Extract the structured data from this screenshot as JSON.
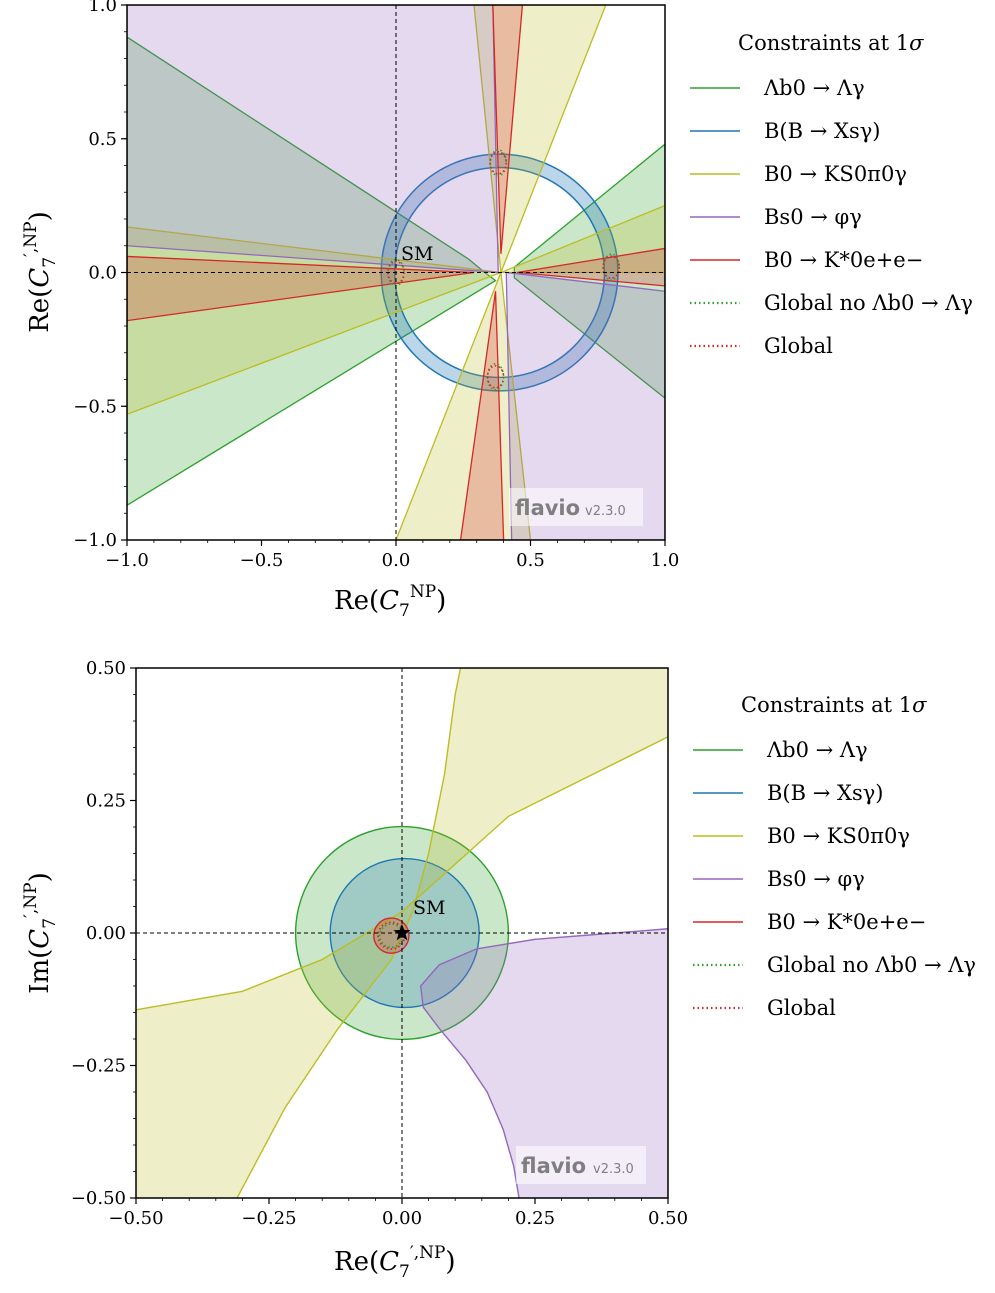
{
  "chart_data": [
    {
      "type": "area",
      "xlabel": "Re(C7 NP)",
      "ylabel": "Re(C'7 NP)",
      "xlim": [
        -1.0,
        1.0
      ],
      "ylim": [
        -1.0,
        1.0
      ],
      "xticks": [
        -1.0,
        -0.5,
        0.0,
        0.5,
        1.0
      ],
      "xtick_labels": [
        "−1.0",
        "−0.5",
        "0.0",
        "0.5",
        "1.0"
      ],
      "yticks": [
        -1.0,
        -0.5,
        0.0,
        0.5,
        1.0
      ],
      "ytick_labels": [
        "−1.0",
        "−0.5",
        "0.0",
        "0.5",
        "1.0"
      ],
      "grid": false,
      "legend_title": "Constraints at 1σ",
      "legend_position": "outside-right",
      "sm_label": "SM",
      "sm_point": [
        0.0,
        0.0
      ],
      "watermark": "flavio",
      "watermark_version": "v2.3.0",
      "regions": [
        {
          "name": "Λb0 → Λγ",
          "color": "#2ca02c",
          "polygons": [
            [
              [
                -1.0,
                0.88
              ],
              [
                0.27,
                0.05
              ],
              [
                0.33,
                0.0
              ],
              [
                0.37,
                -0.03
              ],
              [
                0.37,
                -0.03
              ],
              [
                -1.0,
                -0.87
              ]
            ],
            [
              [
                1.0,
                0.48
              ],
              [
                0.44,
                0.02
              ],
              [
                0.44,
                -0.02
              ],
              [
                1.0,
                -0.47
              ]
            ]
          ]
        },
        {
          "name": "B(B → Xsγ)",
          "color": "#1f77b4",
          "ring": {
            "center": [
              0.385,
              0.0
            ],
            "r_inner": 0.39,
            "r_outer": 0.44
          }
        },
        {
          "name": "B0 → KS0π0γ",
          "color": "#bcbd22",
          "polygons": [
            [
              [
                -1.0,
                0.17
              ],
              [
                0.39,
                0.0
              ],
              [
                -1.0,
                -0.53
              ]
            ],
            [
              [
                0.39,
                0.0
              ],
              [
                1.0,
                0.25
              ],
              [
                1.0,
                -0.0
              ]
            ],
            [
              [
                0.39,
                0.0
              ],
              [
                0.29,
                1.0
              ],
              [
                0.78,
                1.0
              ]
            ],
            [
              [
                0.39,
                0.0
              ],
              [
                0.0,
                -1.0
              ],
              [
                0.5,
                -1.0
              ]
            ]
          ]
        },
        {
          "name": "Bs0 → φγ",
          "color": "#9467bd",
          "polygons": [
            [
              [
                -1.0,
                1.0
              ],
              [
                0.36,
                1.0
              ],
              [
                0.38,
                0.0
              ],
              [
                -1.0,
                0.1
              ]
            ],
            [
              [
                0.41,
                0.0
              ],
              [
                0.43,
                -1.0
              ],
              [
                1.0,
                -1.0
              ],
              [
                1.0,
                -0.07
              ]
            ]
          ]
        },
        {
          "name": "B0 → K*0e+e−",
          "color": "#d62728",
          "polygons": [
            [
              [
                -1.0,
                0.06
              ],
              [
                0.29,
                0.0
              ],
              [
                -1.0,
                -0.18
              ]
            ],
            [
              [
                0.45,
                0.0
              ],
              [
                1.0,
                0.09
              ],
              [
                1.0,
                -0.05
              ]
            ],
            [
              [
                0.36,
                1.0
              ],
              [
                0.39,
                0.07
              ],
              [
                0.47,
                1.0
              ]
            ],
            [
              [
                0.24,
                -1.0
              ],
              [
                0.37,
                -0.07
              ],
              [
                0.4,
                -1.0
              ]
            ]
          ]
        }
      ],
      "global_points": [
        [
          0.0,
          0.0
        ],
        [
          0.8,
          0.02
        ],
        [
          0.38,
          0.41
        ],
        [
          0.37,
          -0.39
        ]
      ],
      "legend": [
        {
          "label": "Λb0 → Λγ",
          "color": "#2ca02c",
          "style": "solid"
        },
        {
          "label": "B(B → Xsγ)",
          "color": "#1f77b4",
          "style": "solid"
        },
        {
          "label": "B0 → KS0π0γ",
          "color": "#bcbd22",
          "style": "solid"
        },
        {
          "label": "Bs0 → φγ",
          "color": "#9467bd",
          "style": "solid"
        },
        {
          "label": "B0 → K*0e+e−",
          "color": "#d62728",
          "style": "solid"
        },
        {
          "label": "Global no Λb0 → Λγ",
          "color": "#2ca02c",
          "style": "dotted"
        },
        {
          "label": "Global",
          "color": "#d62728",
          "style": "dotted"
        }
      ]
    },
    {
      "type": "area",
      "xlabel": "Re(C'7 NP)",
      "ylabel": "Im(C'7 NP)",
      "xlim": [
        -0.5,
        0.5
      ],
      "ylim": [
        -0.5,
        0.5
      ],
      "xticks": [
        -0.5,
        -0.25,
        0.0,
        0.25,
        0.5
      ],
      "xtick_labels": [
        "−0.50",
        "−0.25",
        "0.00",
        "0.25",
        "0.50"
      ],
      "yticks": [
        -0.5,
        -0.25,
        0.0,
        0.25,
        0.5
      ],
      "ytick_labels": [
        "−0.50",
        "−0.25",
        "0.00",
        "0.25",
        "0.50"
      ],
      "grid": false,
      "legend_title": "Constraints at 1σ",
      "legend_position": "outside-right",
      "sm_label": "SM",
      "sm_point": [
        0.0,
        0.0
      ],
      "watermark": "flavio",
      "watermark_version": "v2.3.0",
      "regions": [
        {
          "name": "Λb0 → Λγ",
          "color": "#2ca02c",
          "circle": {
            "center": [
              0.0,
              0.0
            ],
            "r": 0.2
          }
        },
        {
          "name": "B(B → Xsγ)",
          "color": "#1f77b4",
          "circle": {
            "center": [
              0.005,
              0.0
            ],
            "r": 0.14
          }
        },
        {
          "name": "B0 → KS0π0γ",
          "color": "#bcbd22",
          "curves": {
            "upper": [
              [
                -0.5,
                -0.145
              ],
              [
                -0.3,
                -0.11
              ],
              [
                -0.15,
                -0.05
              ],
              [
                0.0,
                0.04
              ],
              [
                0.1,
                0.13
              ],
              [
                0.2,
                0.22
              ],
              [
                0.3,
                0.27
              ],
              [
                0.4,
                0.32
              ],
              [
                0.5,
                0.37
              ]
            ],
            "lower": [
              [
                -0.31,
                -0.5
              ],
              [
                -0.22,
                -0.33
              ],
              [
                -0.12,
                -0.18
              ],
              [
                -0.02,
                -0.05
              ],
              [
                0.02,
                0.04
              ],
              [
                0.05,
                0.15
              ],
              [
                0.08,
                0.3
              ],
              [
                0.1,
                0.45
              ],
              [
                0.11,
                0.5
              ]
            ]
          }
        },
        {
          "name": "Bs0 → φγ",
          "color": "#9467bd",
          "curve": [
            [
              0.5,
              0.008
            ],
            [
              0.4,
              0.0
            ],
            [
              0.25,
              -0.012
            ],
            [
              0.14,
              -0.03
            ],
            [
              0.07,
              -0.06
            ],
            [
              0.035,
              -0.1
            ],
            [
              0.04,
              -0.14
            ],
            [
              0.07,
              -0.18
            ],
            [
              0.12,
              -0.24
            ],
            [
              0.16,
              -0.3
            ],
            [
              0.19,
              -0.37
            ],
            [
              0.21,
              -0.44
            ],
            [
              0.22,
              -0.5
            ]
          ]
        },
        {
          "name": "B0 → K*0e+e−",
          "color": "#d62728",
          "circle": {
            "center": [
              -0.02,
              -0.005
            ],
            "r": 0.033
          }
        }
      ],
      "global_regions": [
        {
          "name": "Global no Λb0 → Λγ",
          "color": "#2ca02c",
          "center": [
            -0.02,
            -0.005
          ],
          "r": 0.022
        },
        {
          "name": "Global",
          "color": "#d62728",
          "center": [
            -0.02,
            -0.005
          ],
          "r": 0.025
        }
      ],
      "legend": [
        {
          "label": "Λb0 → Λγ",
          "color": "#2ca02c",
          "style": "solid"
        },
        {
          "label": "B(B → Xsγ)",
          "color": "#1f77b4",
          "style": "solid"
        },
        {
          "label": "B0 → KS0π0γ",
          "color": "#bcbd22",
          "style": "solid"
        },
        {
          "label": "Bs0 → φγ",
          "color": "#9467bd",
          "style": "solid"
        },
        {
          "label": "B0 → K*0e+e−",
          "color": "#d62728",
          "style": "solid"
        },
        {
          "label": "Global no Λb0 → Λγ",
          "color": "#2ca02c",
          "style": "dotted"
        },
        {
          "label": "Global",
          "color": "#d62728",
          "style": "dotted"
        }
      ]
    }
  ]
}
